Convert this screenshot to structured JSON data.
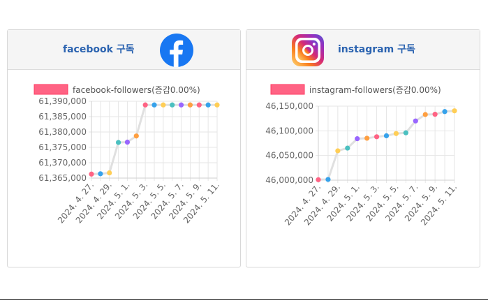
{
  "cards": {
    "facebook": {
      "title": "facebook 구독",
      "logo_icon": "facebook-logo-icon",
      "brand_color": "#1877f2"
    },
    "instagram": {
      "title": "instagram 구독",
      "logo_icon": "instagram-logo-icon",
      "brand_color": "#c13584"
    }
  },
  "chart_data": [
    {
      "type": "line",
      "legend": "facebook-followers(증감0.00%)",
      "legend_color": "#ff6384",
      "line_color": "#e0e0e0",
      "x": [
        "2024. 4. 27.",
        "2024. 4. 28.",
        "2024. 4. 29.",
        "2024. 4. 30.",
        "2024. 5. 1.",
        "2024. 5. 2.",
        "2024. 5. 3.",
        "2024. 5. 4.",
        "2024. 5. 5.",
        "2024. 5. 6.",
        "2024. 5. 7.",
        "2024. 5. 8.",
        "2024. 5. 9.",
        "2024. 5. 10.",
        "2024. 5. 11."
      ],
      "x_tick_labels": [
        "2024. 4. 27.",
        "2024. 4. 29.",
        "2024. 5. 1.",
        "2024. 5. 3.",
        "2024. 5. 5.",
        "2024. 5. 7.",
        "2024. 5. 9.",
        "2024. 5. 11."
      ],
      "values": [
        61366300,
        61366400,
        61366700,
        61376600,
        61376700,
        61378700,
        61388800,
        61388800,
        61388800,
        61388800,
        61388800,
        61388800,
        61388800,
        61388800,
        61388800
      ],
      "yticks": [
        "61,390,000",
        "61,385,000",
        "61,380,000",
        "61,375,000",
        "61,370,000",
        "61,365,000"
      ],
      "ylim": [
        61365000,
        61390000
      ],
      "point_colors": [
        "#ff6384",
        "#36a2eb",
        "#ffce56",
        "#4bc0c0",
        "#9966ff",
        "#ff9f40",
        "#ff6384",
        "#36a2eb",
        "#ffce56",
        "#4bc0c0",
        "#9966ff",
        "#ff9f40",
        "#ff6384",
        "#36a2eb",
        "#ffce56"
      ],
      "grid": true
    },
    {
      "type": "line",
      "legend": "instagram-followers(증감0.00%)",
      "legend_color": "#ff6384",
      "line_color": "#e0e0e0",
      "x": [
        "2024. 4. 27.",
        "2024. 4. 28.",
        "2024. 4. 29.",
        "2024. 4. 30.",
        "2024. 5. 1.",
        "2024. 5. 2.",
        "2024. 5. 3.",
        "2024. 5. 4.",
        "2024. 5. 5.",
        "2024. 5. 6.",
        "2024. 5. 7.",
        "2024. 5. 8.",
        "2024. 5. 9.",
        "2024. 5. 10.",
        "2024. 5. 11."
      ],
      "x_tick_labels": [
        "2024. 4. 27.",
        "2024. 4. 29.",
        "2024. 5. 1.",
        "2024. 5. 3.",
        "2024. 5. 5.",
        "2024. 5. 7.",
        "2024. 5. 9.",
        "2024. 5. 11."
      ],
      "values": [
        46001000,
        46001500,
        46059500,
        46065000,
        46084000,
        46085000,
        46088000,
        46090000,
        46094500,
        46096000,
        46120000,
        46133000,
        46133500,
        46139000,
        46140500
      ],
      "yticks": [
        "46,150,000",
        "46,100,000",
        "46,050,000",
        "46,000,000"
      ],
      "ylim": [
        46000000,
        46150000
      ],
      "point_colors": [
        "#ff6384",
        "#36a2eb",
        "#ffce56",
        "#4bc0c0",
        "#9966ff",
        "#ff9f40",
        "#ff6384",
        "#36a2eb",
        "#ffce56",
        "#4bc0c0",
        "#9966ff",
        "#ff9f40",
        "#ff6384",
        "#36a2eb",
        "#ffce56"
      ],
      "grid": true
    }
  ]
}
